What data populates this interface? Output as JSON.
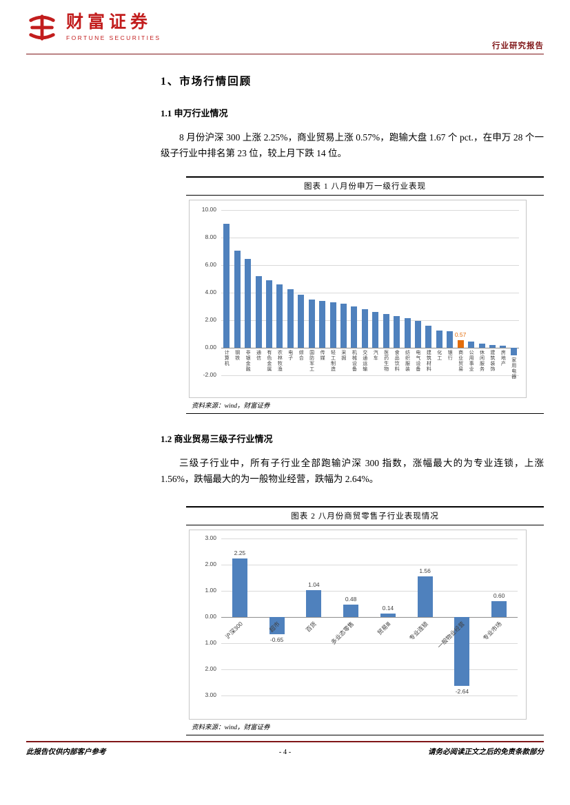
{
  "header": {
    "brand_cn": "财富证券",
    "brand_en": "FORTUNE SECURITIES",
    "report_type": "行业研究报告"
  },
  "content": {
    "section1_heading": "1、市场行情回顾",
    "sub1_heading": "1.1 申万行业情况",
    "para1": "8 月份沪深 300 上涨 2.25%，商业贸易上涨 0.57%，跑输大盘 1.67 个 pct.，在申万 28 个一级子行业中排名第 23 位，较上月下跌 14 位。",
    "sub2_heading": "1.2 商业贸易三级子行业情况",
    "para2": "三级子行业中，所有子行业全部跑输沪深 300 指数，涨幅最大的为专业连锁，上涨 1.56%，跌幅最大的为一般物业经营，跌幅为 2.64%。"
  },
  "figures": [
    {
      "title": "图表 1 八月份申万一级行业表现",
      "source": "资料来源：wind，财富证券"
    },
    {
      "title": "图表 2 八月份商贸零售子行业表现情况",
      "source": "资料来源：wind，财富证券"
    }
  ],
  "footer": {
    "left": "此报告仅供内部客户参考",
    "center": "- 4 -",
    "right": "请务必阅读正文之后的免责条款部分"
  },
  "chart_data": [
    {
      "type": "bar",
      "title": "八月份申万一级行业表现",
      "categories": [
        "计算机",
        "钢铁",
        "非银金融",
        "通信",
        "有色金属",
        "农林牧渔",
        "电子",
        "综合",
        "国防军工",
        "传媒",
        "轻工制造",
        "采掘",
        "机械设备",
        "交通运输",
        "汽车",
        "医药生物",
        "食品饮料",
        "纺织服装",
        "电气设备",
        "建筑材料",
        "化工",
        "银行",
        "商业贸易",
        "公用事业",
        "休闲服务",
        "建筑装饰",
        "房地产",
        "家用电器"
      ],
      "values": [
        9.0,
        7.04,
        6.46,
        5.22,
        4.92,
        4.6,
        4.25,
        3.85,
        3.52,
        3.4,
        3.3,
        3.18,
        3.02,
        2.8,
        2.62,
        2.45,
        2.3,
        2.15,
        1.95,
        1.6,
        1.25,
        1.18,
        0.57,
        0.45,
        0.32,
        0.22,
        0.15,
        -0.55
      ],
      "highlight_index": 22,
      "highlight_value_label": "0.57",
      "bar_color": "#4f81bd",
      "highlight_color": "#e36c0a",
      "ylim": [
        -2,
        10
      ],
      "ytick_step": 2,
      "ytick_labels": [
        "10.00",
        "8.00",
        "6.00",
        "4.00",
        "2.00",
        "0.00",
        "-2.00"
      ],
      "grid": true,
      "legend": false,
      "xlabel_rotation": "vertical"
    },
    {
      "type": "bar",
      "title": "八月份商贸零售子行业表现情况",
      "categories": [
        "沪深300",
        "超市",
        "百货",
        "多业态零售",
        "贸易Ⅲ",
        "专业连锁",
        "一般物业经营",
        "专业市场"
      ],
      "values": [
        2.25,
        -0.65,
        1.04,
        0.48,
        0.14,
        1.56,
        -2.64,
        0.6
      ],
      "data_labels": [
        "2.25",
        "-0.65",
        "1.04",
        "0.48",
        "0.14",
        "1.56",
        "-2.64",
        "0.60"
      ],
      "bar_color": "#4f81bd",
      "ylim": [
        -3,
        3
      ],
      "ytick_step": 1,
      "ytick_labels": [
        "3.00",
        "2.00",
        "1.00",
        "0.00",
        "1.00",
        "2.00",
        "3.00"
      ],
      "grid": true,
      "legend": false,
      "xlabel_rotation": "diagonal"
    }
  ]
}
